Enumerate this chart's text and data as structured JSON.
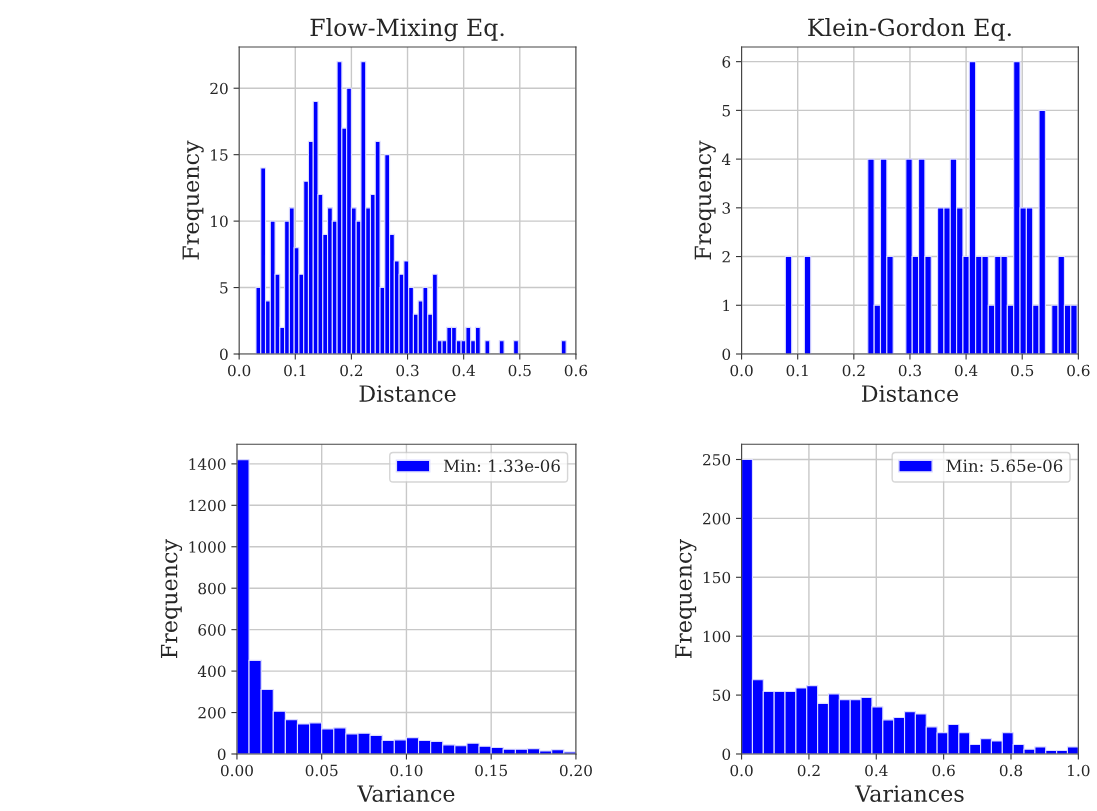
{
  "chart_data": [
    {
      "type": "histogram",
      "title": "Flow-Mixing Eq.",
      "xlabel": "Distance",
      "ylabel": "Frequency",
      "grid": true,
      "xlim": [
        0,
        0.6
      ],
      "ylim": [
        0,
        23.1
      ],
      "xticks": [
        {
          "value": 0,
          "label": "0.0"
        },
        0.1,
        0.2,
        0.3,
        0.4,
        0.5,
        0.6
      ],
      "yticks": [
        0,
        5,
        10,
        15,
        20
      ],
      "bins": [
        0.03,
        0.0385,
        0.047,
        0.0555,
        0.064,
        0.0725,
        0.081,
        0.0895,
        0.098,
        0.1065,
        0.115,
        0.1235,
        0.132,
        0.1405,
        0.149,
        0.1575,
        0.166,
        0.1745,
        0.183,
        0.1915,
        0.2,
        0.2085,
        0.217,
        0.2255,
        0.234,
        0.2425,
        0.251,
        0.2595,
        0.268,
        0.2765,
        0.285,
        0.2935,
        0.302,
        0.3105,
        0.319,
        0.3275,
        0.336,
        0.3445,
        0.353,
        0.3615,
        0.37,
        0.3785,
        0.387,
        0.3955,
        0.404,
        0.4125,
        0.421,
        0.4295,
        0.438,
        0.4465,
        0.455,
        0.4635,
        0.472,
        0.4805,
        0.489,
        0.4975,
        0.506,
        0.5145,
        0.523,
        0.5315,
        0.54,
        0.5485,
        0.557,
        0.5655,
        0.574,
        0.5825
      ],
      "series": [
        {
          "color": "#0000ff",
          "values": [
            5,
            14,
            4,
            10,
            6,
            2,
            10,
            11,
            8,
            6,
            13,
            16,
            19,
            12,
            9,
            11,
            10,
            22,
            17,
            20,
            11,
            10,
            22,
            11,
            12,
            16,
            5,
            15,
            9,
            7,
            6,
            7,
            5,
            3,
            4,
            5,
            3,
            6,
            1,
            1,
            2,
            2,
            1,
            1,
            2,
            1,
            2,
            0,
            1,
            0,
            0,
            1,
            0,
            0,
            1,
            0,
            0,
            0,
            0,
            0,
            0,
            0,
            0,
            0,
            1
          ]
        }
      ]
    },
    {
      "type": "histogram",
      "title": "Klein-Gordon Eq.",
      "xlabel": "Distance",
      "ylabel": "Frequency",
      "grid": true,
      "xlim": [
        0,
        0.6
      ],
      "ylim": [
        0,
        6.3
      ],
      "xticks": [
        {
          "value": 0,
          "label": "0.0"
        },
        0.1,
        0.2,
        0.3,
        0.4,
        0.5,
        0.6
      ],
      "yticks": [
        0,
        1,
        2,
        3,
        4,
        5,
        6
      ],
      "bins": [
        0.078,
        0.0893,
        0.1006,
        0.1119,
        0.1232,
        0.1345,
        0.1458,
        0.1571,
        0.1684,
        0.1797,
        0.191,
        0.2023,
        0.2136,
        0.2249,
        0.2362,
        0.2475,
        0.2588,
        0.2701,
        0.2814,
        0.2927,
        0.304,
        0.3153,
        0.3266,
        0.3379,
        0.3492,
        0.3605,
        0.3718,
        0.3831,
        0.3944,
        0.4057,
        0.417,
        0.4283,
        0.4396,
        0.4509,
        0.4622,
        0.4735,
        0.4848,
        0.4961,
        0.5074,
        0.5187,
        0.53,
        0.5413,
        0.5526,
        0.5639,
        0.5752,
        0.5865,
        0.5978
      ],
      "series": [
        {
          "color": "#0000ff",
          "values": [
            2,
            0,
            0,
            2,
            0,
            0,
            0,
            0,
            0,
            0,
            0,
            0,
            0,
            4,
            1,
            4,
            2,
            0,
            0,
            4,
            2,
            4,
            2,
            0,
            3,
            3,
            4,
            3,
            2,
            6,
            2,
            2,
            1,
            2,
            2,
            1,
            6,
            3,
            3,
            1,
            5,
            0,
            1,
            2,
            1,
            1
          ]
        }
      ]
    },
    {
      "type": "histogram",
      "xlabel": "Variance",
      "ylabel": "Frequency",
      "grid": true,
      "legend": "top right",
      "xlim": [
        0,
        0.2
      ],
      "ylim": [
        0,
        1495
      ],
      "xticks": [
        {
          "value": 0,
          "label": "0.00"
        },
        {
          "value": 0.05,
          "label": "0.05"
        },
        {
          "value": 0.1,
          "label": "0.10"
        },
        {
          "value": 0.15,
          "label": "0.15"
        },
        {
          "value": 0.2,
          "label": "0.20"
        }
      ],
      "yticks": [
        0,
        200,
        400,
        600,
        800,
        1000,
        1200,
        1400
      ],
      "bins": [
        0,
        0.00714,
        0.01429,
        0.02143,
        0.02857,
        0.03571,
        0.04286,
        0.05,
        0.05714,
        0.06429,
        0.07143,
        0.07857,
        0.08571,
        0.09286,
        0.1,
        0.10714,
        0.11429,
        0.12143,
        0.12857,
        0.13571,
        0.14286,
        0.15,
        0.15714,
        0.16429,
        0.17143,
        0.17857,
        0.18571,
        0.19286,
        0.2
      ],
      "series": [
        {
          "name": "Min: 1.33e-06",
          "color": "#0000ff",
          "values": [
            1420,
            452,
            311,
            206,
            165,
            145,
            150,
            121,
            126,
            97,
            100,
            90,
            65,
            68,
            79,
            65,
            61,
            44,
            40,
            52,
            37,
            31,
            23,
            23,
            26,
            15,
            21,
            10
          ]
        }
      ]
    },
    {
      "type": "histogram",
      "xlabel": "Variances",
      "ylabel": "Frequency",
      "grid": true,
      "legend": "top right",
      "xlim": [
        0,
        1
      ],
      "ylim": [
        0,
        263
      ],
      "xticks": [
        {
          "value": 0,
          "label": "0.0"
        },
        0.2,
        0.4,
        0.6,
        0.8,
        {
          "value": 1,
          "label": "1.0"
        }
      ],
      "yticks": [
        0,
        50,
        100,
        150,
        200,
        250
      ],
      "bins": [
        0,
        0.0323,
        0.0645,
        0.0968,
        0.129,
        0.1613,
        0.1935,
        0.2258,
        0.2581,
        0.2903,
        0.3226,
        0.3548,
        0.3871,
        0.4194,
        0.4516,
        0.4839,
        0.5161,
        0.5484,
        0.5806,
        0.6129,
        0.6452,
        0.6774,
        0.7097,
        0.7419,
        0.7742,
        0.8065,
        0.8387,
        0.871,
        0.9032,
        0.9355,
        0.9677,
        1.0
      ],
      "series": [
        {
          "name": "Min: 5.65e-06",
          "color": "#0000ff",
          "values": [
            250,
            63,
            53,
            53,
            53,
            56,
            58,
            43,
            51,
            46,
            46,
            48,
            40,
            29,
            31,
            36,
            34,
            23,
            18,
            25,
            18,
            8,
            13,
            11,
            18,
            8,
            4,
            6,
            3,
            3,
            6
          ]
        }
      ]
    }
  ]
}
